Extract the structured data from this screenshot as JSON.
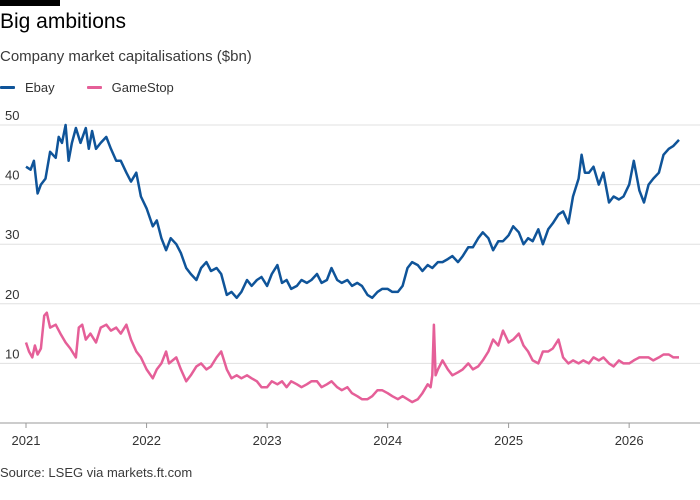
{
  "header": {
    "title": "Big ambitions",
    "subtitle": "Company market capitalisations ($bn)"
  },
  "footer": {
    "source": "Source: LSEG via markets.ft.com"
  },
  "colors": {
    "ebay": "#0f5499",
    "gamestop": "#e55f98",
    "grid": "#e0e0e0",
    "axis": "#999999"
  },
  "chart_data": {
    "type": "line",
    "title": "Big ambitions",
    "subtitle": "Company market capitalisations ($bn)",
    "xlabel": "",
    "ylabel": "",
    "ylim": [
      0,
      50
    ],
    "xlim": [
      "2021-01-01",
      "2026-06-10"
    ],
    "y_ticks": [
      "10",
      "20",
      "30",
      "40",
      "50"
    ],
    "x_ticks": [
      {
        "date": "2021-01-01",
        "label": "2021"
      },
      {
        "date": "2022-01-01",
        "label": "2022"
      },
      {
        "date": "2023-01-01",
        "label": "2023"
      },
      {
        "date": "2024-01-01",
        "label": "2024"
      },
      {
        "date": "2025-01-01",
        "label": "2025"
      },
      {
        "date": "2026-01-01",
        "label": "2026"
      }
    ],
    "grid": true,
    "legend_position": "top-left",
    "series": [
      {
        "name": "Ebay",
        "color": "#0f5499",
        "points": [
          [
            "2021-01-01",
            43
          ],
          [
            "2021-01-15",
            42.5
          ],
          [
            "2021-01-25",
            44
          ],
          [
            "2021-02-05",
            38.5
          ],
          [
            "2021-02-15",
            40
          ],
          [
            "2021-03-01",
            41
          ],
          [
            "2021-03-15",
            45.5
          ],
          [
            "2021-04-01",
            44.5
          ],
          [
            "2021-04-10",
            48
          ],
          [
            "2021-04-20",
            47
          ],
          [
            "2021-05-01",
            50
          ],
          [
            "2021-05-10",
            44
          ],
          [
            "2021-05-20",
            47
          ],
          [
            "2021-06-01",
            49.5
          ],
          [
            "2021-06-15",
            47
          ],
          [
            "2021-07-01",
            49.5
          ],
          [
            "2021-07-10",
            46
          ],
          [
            "2021-07-20",
            49
          ],
          [
            "2021-08-01",
            46
          ],
          [
            "2021-08-15",
            47
          ],
          [
            "2021-09-01",
            48
          ],
          [
            "2021-09-15",
            46
          ],
          [
            "2021-10-01",
            44
          ],
          [
            "2021-10-15",
            44
          ],
          [
            "2021-11-01",
            42
          ],
          [
            "2021-11-15",
            40.5
          ],
          [
            "2021-12-01",
            42
          ],
          [
            "2021-12-15",
            38
          ],
          [
            "2022-01-01",
            36
          ],
          [
            "2022-01-20",
            33
          ],
          [
            "2022-02-01",
            34
          ],
          [
            "2022-02-15",
            31
          ],
          [
            "2022-03-01",
            29
          ],
          [
            "2022-03-15",
            31
          ],
          [
            "2022-04-01",
            30
          ],
          [
            "2022-04-15",
            28.5
          ],
          [
            "2022-05-01",
            26
          ],
          [
            "2022-05-15",
            25
          ],
          [
            "2022-06-01",
            24
          ],
          [
            "2022-06-15",
            26
          ],
          [
            "2022-07-01",
            27
          ],
          [
            "2022-07-15",
            25.5
          ],
          [
            "2022-08-01",
            26
          ],
          [
            "2022-08-15",
            25
          ],
          [
            "2022-09-01",
            21.5
          ],
          [
            "2022-09-15",
            22
          ],
          [
            "2022-10-01",
            21
          ],
          [
            "2022-10-15",
            22
          ],
          [
            "2022-11-01",
            24
          ],
          [
            "2022-11-15",
            23
          ],
          [
            "2022-12-01",
            24
          ],
          [
            "2022-12-15",
            24.5
          ],
          [
            "2023-01-01",
            23
          ],
          [
            "2023-01-15",
            25
          ],
          [
            "2023-02-01",
            26.5
          ],
          [
            "2023-02-15",
            23.5
          ],
          [
            "2023-03-01",
            24
          ],
          [
            "2023-03-15",
            22.5
          ],
          [
            "2023-04-01",
            23
          ],
          [
            "2023-04-15",
            24
          ],
          [
            "2023-05-01",
            23.5
          ],
          [
            "2023-05-15",
            24
          ],
          [
            "2023-06-01",
            25
          ],
          [
            "2023-06-15",
            23.5
          ],
          [
            "2023-07-01",
            24
          ],
          [
            "2023-07-15",
            26
          ],
          [
            "2023-08-01",
            24
          ],
          [
            "2023-08-15",
            23.5
          ],
          [
            "2023-09-01",
            24
          ],
          [
            "2023-09-15",
            23
          ],
          [
            "2023-10-01",
            23.5
          ],
          [
            "2023-10-15",
            23
          ],
          [
            "2023-11-01",
            21.5
          ],
          [
            "2023-11-15",
            21
          ],
          [
            "2023-12-01",
            22
          ],
          [
            "2023-12-15",
            22.5
          ],
          [
            "2024-01-01",
            22.5
          ],
          [
            "2024-01-15",
            22
          ],
          [
            "2024-02-01",
            22
          ],
          [
            "2024-02-15",
            23
          ],
          [
            "2024-03-01",
            26
          ],
          [
            "2024-03-15",
            27
          ],
          [
            "2024-04-01",
            26.5
          ],
          [
            "2024-04-15",
            25.5
          ],
          [
            "2024-05-01",
            26.5
          ],
          [
            "2024-05-15",
            26
          ],
          [
            "2024-06-01",
            27
          ],
          [
            "2024-06-15",
            27
          ],
          [
            "2024-07-01",
            27.5
          ],
          [
            "2024-07-15",
            28
          ],
          [
            "2024-08-01",
            27
          ],
          [
            "2024-08-15",
            28
          ],
          [
            "2024-09-01",
            29.5
          ],
          [
            "2024-09-15",
            29.5
          ],
          [
            "2024-10-01",
            31
          ],
          [
            "2024-10-15",
            32
          ],
          [
            "2024-11-01",
            31
          ],
          [
            "2024-11-15",
            29
          ],
          [
            "2024-12-01",
            30.5
          ],
          [
            "2024-12-15",
            30.5
          ],
          [
            "2025-01-01",
            31.5
          ],
          [
            "2025-01-15",
            33
          ],
          [
            "2025-02-01",
            32
          ],
          [
            "2025-02-15",
            30
          ],
          [
            "2025-03-01",
            31
          ],
          [
            "2025-03-15",
            30.5
          ],
          [
            "2025-04-01",
            32.5
          ],
          [
            "2025-04-15",
            30
          ],
          [
            "2025-05-01",
            32.5
          ],
          [
            "2025-05-15",
            33.5
          ],
          [
            "2025-06-01",
            35
          ],
          [
            "2025-06-15",
            35.5
          ],
          [
            "2025-07-01",
            33.5
          ],
          [
            "2025-07-15",
            38
          ],
          [
            "2025-08-01",
            41
          ],
          [
            "2025-08-10",
            45
          ],
          [
            "2025-08-20",
            42
          ],
          [
            "2025-09-01",
            42
          ],
          [
            "2025-09-15",
            43
          ],
          [
            "2025-10-01",
            40
          ],
          [
            "2025-10-15",
            42
          ],
          [
            "2025-11-01",
            37
          ],
          [
            "2025-11-15",
            38
          ],
          [
            "2025-12-01",
            37.5
          ],
          [
            "2025-12-15",
            38
          ],
          [
            "2026-01-01",
            40
          ],
          [
            "2026-01-15",
            44
          ],
          [
            "2026-02-01",
            39
          ],
          [
            "2026-02-15",
            37
          ],
          [
            "2026-03-01",
            40
          ],
          [
            "2026-03-15",
            41
          ],
          [
            "2026-04-01",
            42
          ],
          [
            "2026-04-15",
            45
          ],
          [
            "2026-05-01",
            46
          ],
          [
            "2026-05-15",
            46.5
          ],
          [
            "2026-06-01",
            47.5
          ]
        ]
      },
      {
        "name": "GameStop",
        "color": "#e55f98",
        "points": [
          [
            "2021-01-01",
            13.5
          ],
          [
            "2021-01-10",
            12
          ],
          [
            "2021-01-20",
            11
          ],
          [
            "2021-01-28",
            13
          ],
          [
            "2021-02-05",
            11.5
          ],
          [
            "2021-02-15",
            12.5
          ],
          [
            "2021-02-25",
            18
          ],
          [
            "2021-03-05",
            18.5
          ],
          [
            "2021-03-15",
            16
          ],
          [
            "2021-04-01",
            16.5
          ],
          [
            "2021-04-15",
            15
          ],
          [
            "2021-05-01",
            13.5
          ],
          [
            "2021-05-15",
            12.5
          ],
          [
            "2021-06-01",
            11
          ],
          [
            "2021-06-10",
            16
          ],
          [
            "2021-06-20",
            16.5
          ],
          [
            "2021-07-01",
            14
          ],
          [
            "2021-07-15",
            15
          ],
          [
            "2021-08-01",
            13.5
          ],
          [
            "2021-08-15",
            16
          ],
          [
            "2021-09-01",
            16.5
          ],
          [
            "2021-09-15",
            15.5
          ],
          [
            "2021-10-01",
            16
          ],
          [
            "2021-10-15",
            15
          ],
          [
            "2021-11-01",
            16.5
          ],
          [
            "2021-11-15",
            14
          ],
          [
            "2021-12-01",
            12
          ],
          [
            "2021-12-15",
            11
          ],
          [
            "2022-01-01",
            9
          ],
          [
            "2022-01-20",
            7.5
          ],
          [
            "2022-02-01",
            9
          ],
          [
            "2022-02-15",
            10
          ],
          [
            "2022-03-01",
            12
          ],
          [
            "2022-03-10",
            10
          ],
          [
            "2022-04-01",
            11
          ],
          [
            "2022-04-15",
            9
          ],
          [
            "2022-05-01",
            7
          ],
          [
            "2022-05-15",
            8
          ],
          [
            "2022-06-01",
            9.5
          ],
          [
            "2022-06-15",
            10
          ],
          [
            "2022-07-01",
            9
          ],
          [
            "2022-07-15",
            9.5
          ],
          [
            "2022-08-01",
            11
          ],
          [
            "2022-08-15",
            12
          ],
          [
            "2022-09-01",
            9
          ],
          [
            "2022-09-15",
            7.5
          ],
          [
            "2022-10-01",
            8
          ],
          [
            "2022-10-15",
            7.5
          ],
          [
            "2022-11-01",
            8
          ],
          [
            "2022-11-15",
            7.5
          ],
          [
            "2022-12-01",
            7
          ],
          [
            "2022-12-15",
            6
          ],
          [
            "2023-01-01",
            6
          ],
          [
            "2023-01-15",
            7
          ],
          [
            "2023-02-01",
            6.5
          ],
          [
            "2023-02-15",
            7
          ],
          [
            "2023-03-01",
            6
          ],
          [
            "2023-03-15",
            7
          ],
          [
            "2023-04-01",
            6.5
          ],
          [
            "2023-04-15",
            6
          ],
          [
            "2023-05-01",
            6.5
          ],
          [
            "2023-05-15",
            7
          ],
          [
            "2023-06-01",
            7
          ],
          [
            "2023-06-15",
            6
          ],
          [
            "2023-07-01",
            6.5
          ],
          [
            "2023-07-15",
            7
          ],
          [
            "2023-08-01",
            6
          ],
          [
            "2023-08-15",
            5.5
          ],
          [
            "2023-09-01",
            6
          ],
          [
            "2023-09-15",
            5
          ],
          [
            "2023-10-01",
            4.5
          ],
          [
            "2023-10-15",
            4
          ],
          [
            "2023-11-01",
            4
          ],
          [
            "2023-11-15",
            4.5
          ],
          [
            "2023-12-01",
            5.5
          ],
          [
            "2023-12-15",
            5.5
          ],
          [
            "2024-01-01",
            5
          ],
          [
            "2024-01-15",
            4.5
          ],
          [
            "2024-02-01",
            4
          ],
          [
            "2024-02-15",
            4.5
          ],
          [
            "2024-03-01",
            4
          ],
          [
            "2024-03-15",
            3.5
          ],
          [
            "2024-04-01",
            4
          ],
          [
            "2024-04-15",
            5
          ],
          [
            "2024-05-01",
            6.5
          ],
          [
            "2024-05-10",
            6
          ],
          [
            "2024-05-15",
            8
          ],
          [
            "2024-05-20",
            16.5
          ],
          [
            "2024-05-25",
            8
          ],
          [
            "2024-06-01",
            9
          ],
          [
            "2024-06-15",
            10.5
          ],
          [
            "2024-07-01",
            9
          ],
          [
            "2024-07-15",
            8
          ],
          [
            "2024-08-01",
            8.5
          ],
          [
            "2024-08-15",
            9
          ],
          [
            "2024-09-01",
            10
          ],
          [
            "2024-09-15",
            9
          ],
          [
            "2024-10-01",
            9.5
          ],
          [
            "2024-10-15",
            10.5
          ],
          [
            "2024-11-01",
            12
          ],
          [
            "2024-11-15",
            14
          ],
          [
            "2024-12-01",
            13
          ],
          [
            "2024-12-15",
            15.5
          ],
          [
            "2025-01-01",
            13.5
          ],
          [
            "2025-01-15",
            14
          ],
          [
            "2025-02-01",
            15
          ],
          [
            "2025-02-15",
            13
          ],
          [
            "2025-03-01",
            12
          ],
          [
            "2025-03-15",
            10.5
          ],
          [
            "2025-04-01",
            10
          ],
          [
            "2025-04-15",
            12
          ],
          [
            "2025-05-01",
            12
          ],
          [
            "2025-05-15",
            12.5
          ],
          [
            "2025-06-01",
            14
          ],
          [
            "2025-06-15",
            11
          ],
          [
            "2025-07-01",
            10
          ],
          [
            "2025-07-15",
            10.5
          ],
          [
            "2025-08-01",
            10
          ],
          [
            "2025-08-15",
            10.5
          ],
          [
            "2025-09-01",
            10
          ],
          [
            "2025-09-15",
            11
          ],
          [
            "2025-10-01",
            10.5
          ],
          [
            "2025-10-15",
            11
          ],
          [
            "2025-11-01",
            10
          ],
          [
            "2025-11-15",
            9.5
          ],
          [
            "2025-12-01",
            10.5
          ],
          [
            "2025-12-15",
            10
          ],
          [
            "2026-01-01",
            10
          ],
          [
            "2026-01-15",
            10.5
          ],
          [
            "2026-02-01",
            11
          ],
          [
            "2026-02-15",
            11
          ],
          [
            "2026-03-01",
            11
          ],
          [
            "2026-03-15",
            10.5
          ],
          [
            "2026-04-01",
            11
          ],
          [
            "2026-04-15",
            11.5
          ],
          [
            "2026-05-01",
            11.5
          ],
          [
            "2026-05-15",
            11
          ],
          [
            "2026-06-01",
            11
          ]
        ]
      }
    ]
  }
}
